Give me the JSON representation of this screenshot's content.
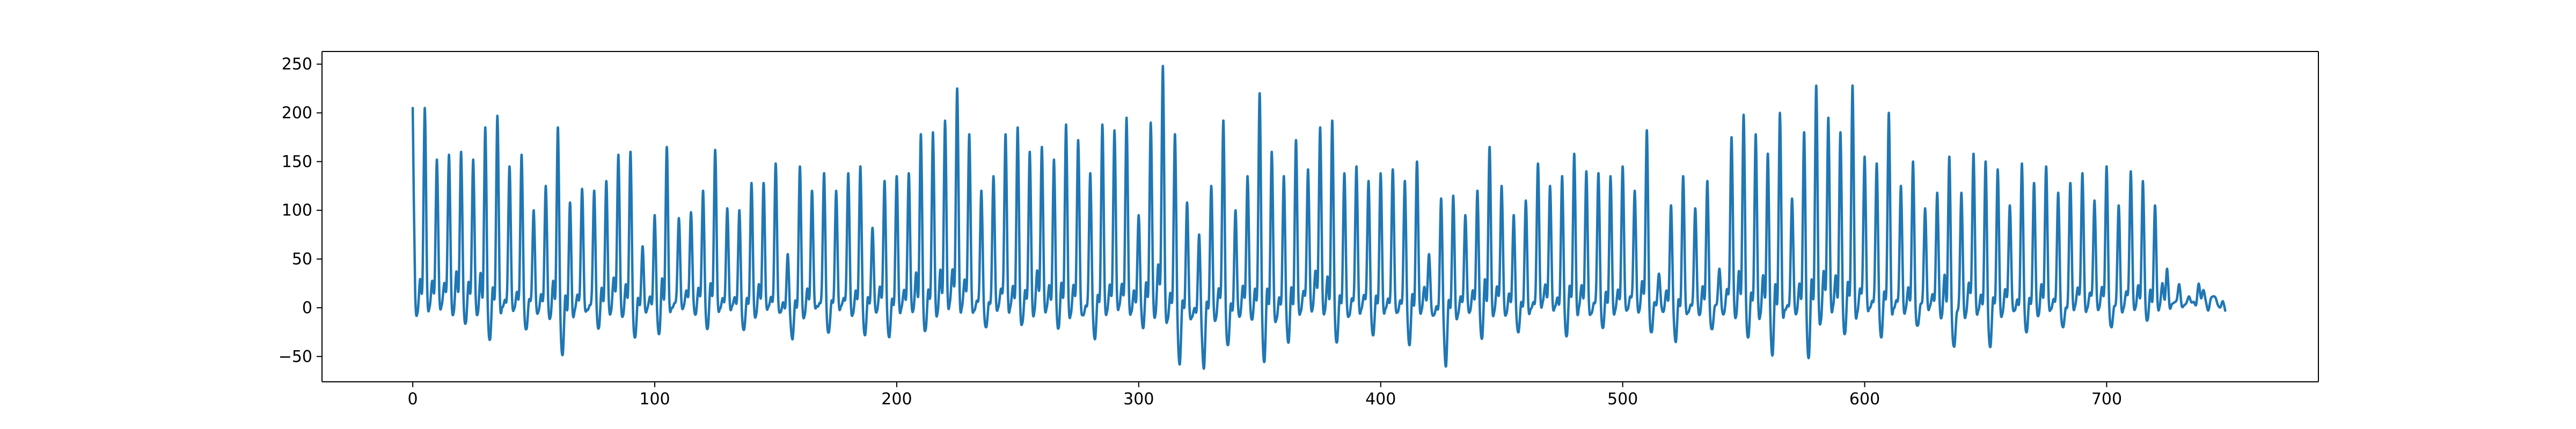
{
  "chart_data": {
    "type": "line",
    "title": "",
    "xlabel": "",
    "ylabel": "",
    "xlim": [
      -37.5,
      787.5
    ],
    "ylim": [
      -76,
      263
    ],
    "x_ticks": [
      0,
      100,
      200,
      300,
      400,
      500,
      600,
      700
    ],
    "x_tick_labels": [
      "0",
      "100",
      "200",
      "300",
      "400",
      "500",
      "600",
      "700"
    ],
    "y_ticks": [
      -50,
      0,
      50,
      100,
      150,
      200,
      250
    ],
    "y_tick_labels": [
      "−50",
      "0",
      "50",
      "100",
      "150",
      "200",
      "250"
    ],
    "grid": false,
    "legend": "none",
    "series": [
      {
        "color": "#1f77b4",
        "x_start": 0,
        "x_step": 1,
        "count": 750,
        "peaks": [
          {
            "x": 0,
            "y": 205
          },
          {
            "x": 5,
            "y": 205
          },
          {
            "x": 10,
            "y": 152
          },
          {
            "x": 15,
            "y": 157
          },
          {
            "x": 20,
            "y": 160
          },
          {
            "x": 25,
            "y": 152
          },
          {
            "x": 30,
            "y": 185
          },
          {
            "x": 35,
            "y": 197
          },
          {
            "x": 40,
            "y": 145
          },
          {
            "x": 45,
            "y": 157
          },
          {
            "x": 50,
            "y": 100
          },
          {
            "x": 55,
            "y": 125
          },
          {
            "x": 60,
            "y": 185
          },
          {
            "x": 65,
            "y": 108
          },
          {
            "x": 70,
            "y": 122
          },
          {
            "x": 75,
            "y": 120
          },
          {
            "x": 80,
            "y": 130
          },
          {
            "x": 85,
            "y": 157
          },
          {
            "x": 90,
            "y": 160
          },
          {
            "x": 95,
            "y": 63
          },
          {
            "x": 100,
            "y": 95
          },
          {
            "x": 105,
            "y": 165
          },
          {
            "x": 110,
            "y": 92
          },
          {
            "x": 115,
            "y": 98
          },
          {
            "x": 120,
            "y": 120
          },
          {
            "x": 125,
            "y": 162
          },
          {
            "x": 130,
            "y": 102
          },
          {
            "x": 135,
            "y": 100
          },
          {
            "x": 140,
            "y": 128
          },
          {
            "x": 145,
            "y": 128
          },
          {
            "x": 150,
            "y": 148
          },
          {
            "x": 155,
            "y": 55
          },
          {
            "x": 160,
            "y": 145
          },
          {
            "x": 165,
            "y": 120
          },
          {
            "x": 170,
            "y": 138
          },
          {
            "x": 175,
            "y": 120
          },
          {
            "x": 180,
            "y": 138
          },
          {
            "x": 185,
            "y": 145
          },
          {
            "x": 190,
            "y": 82
          },
          {
            "x": 195,
            "y": 130
          },
          {
            "x": 200,
            "y": 135
          },
          {
            "x": 205,
            "y": 138
          },
          {
            "x": 210,
            "y": 178
          },
          {
            "x": 215,
            "y": 180
          },
          {
            "x": 220,
            "y": 192
          },
          {
            "x": 225,
            "y": 225
          },
          {
            "x": 230,
            "y": 178
          },
          {
            "x": 235,
            "y": 120
          },
          {
            "x": 240,
            "y": 135
          },
          {
            "x": 245,
            "y": 178
          },
          {
            "x": 250,
            "y": 185
          },
          {
            "x": 255,
            "y": 160
          },
          {
            "x": 260,
            "y": 165
          },
          {
            "x": 265,
            "y": 152
          },
          {
            "x": 270,
            "y": 188
          },
          {
            "x": 275,
            "y": 172
          },
          {
            "x": 280,
            "y": 138
          },
          {
            "x": 285,
            "y": 188
          },
          {
            "x": 290,
            "y": 182
          },
          {
            "x": 295,
            "y": 195
          },
          {
            "x": 300,
            "y": 95
          },
          {
            "x": 305,
            "y": 190
          },
          {
            "x": 310,
            "y": 248
          },
          {
            "x": 315,
            "y": 178
          },
          {
            "x": 320,
            "y": 108
          },
          {
            "x": 325,
            "y": 75
          },
          {
            "x": 330,
            "y": 125
          },
          {
            "x": 335,
            "y": 192
          },
          {
            "x": 340,
            "y": 100
          },
          {
            "x": 345,
            "y": 135
          },
          {
            "x": 350,
            "y": 220
          },
          {
            "x": 355,
            "y": 160
          },
          {
            "x": 360,
            "y": 135
          },
          {
            "x": 365,
            "y": 172
          },
          {
            "x": 370,
            "y": 142
          },
          {
            "x": 375,
            "y": 185
          },
          {
            "x": 380,
            "y": 192
          },
          {
            "x": 385,
            "y": 138
          },
          {
            "x": 390,
            "y": 145
          },
          {
            "x": 395,
            "y": 130
          },
          {
            "x": 400,
            "y": 138
          },
          {
            "x": 405,
            "y": 142
          },
          {
            "x": 410,
            "y": 130
          },
          {
            "x": 415,
            "y": 150
          },
          {
            "x": 420,
            "y": 55
          },
          {
            "x": 425,
            "y": 112
          },
          {
            "x": 430,
            "y": 115
          },
          {
            "x": 435,
            "y": 95
          },
          {
            "x": 440,
            "y": 120
          },
          {
            "x": 445,
            "y": 165
          },
          {
            "x": 450,
            "y": 125
          },
          {
            "x": 455,
            "y": 95
          },
          {
            "x": 460,
            "y": 110
          },
          {
            "x": 465,
            "y": 148
          },
          {
            "x": 470,
            "y": 125
          },
          {
            "x": 475,
            "y": 135
          },
          {
            "x": 480,
            "y": 158
          },
          {
            "x": 485,
            "y": 140
          },
          {
            "x": 490,
            "y": 138
          },
          {
            "x": 495,
            "y": 135
          },
          {
            "x": 500,
            "y": 145
          },
          {
            "x": 505,
            "y": 120
          },
          {
            "x": 510,
            "y": 182
          },
          {
            "x": 515,
            "y": 35
          },
          {
            "x": 520,
            "y": 105
          },
          {
            "x": 525,
            "y": 135
          },
          {
            "x": 530,
            "y": 102
          },
          {
            "x": 535,
            "y": 130
          },
          {
            "x": 540,
            "y": 40
          },
          {
            "x": 545,
            "y": 175
          },
          {
            "x": 550,
            "y": 198
          },
          {
            "x": 555,
            "y": 178
          },
          {
            "x": 560,
            "y": 158
          },
          {
            "x": 565,
            "y": 200
          },
          {
            "x": 570,
            "y": 112
          },
          {
            "x": 575,
            "y": 180
          },
          {
            "x": 580,
            "y": 228
          },
          {
            "x": 585,
            "y": 195
          },
          {
            "x": 590,
            "y": 180
          },
          {
            "x": 595,
            "y": 228
          },
          {
            "x": 600,
            "y": 155
          },
          {
            "x": 605,
            "y": 148
          },
          {
            "x": 610,
            "y": 200
          },
          {
            "x": 615,
            "y": 125
          },
          {
            "x": 620,
            "y": 150
          },
          {
            "x": 625,
            "y": 102
          },
          {
            "x": 630,
            "y": 118
          },
          {
            "x": 635,
            "y": 155
          },
          {
            "x": 640,
            "y": 118
          },
          {
            "x": 645,
            "y": 158
          },
          {
            "x": 650,
            "y": 150
          },
          {
            "x": 655,
            "y": 142
          },
          {
            "x": 660,
            "y": 105
          },
          {
            "x": 665,
            "y": 148
          },
          {
            "x": 670,
            "y": 128
          },
          {
            "x": 675,
            "y": 145
          },
          {
            "x": 680,
            "y": 118
          },
          {
            "x": 685,
            "y": 128
          },
          {
            "x": 690,
            "y": 138
          },
          {
            "x": 695,
            "y": 110
          },
          {
            "x": 700,
            "y": 145
          },
          {
            "x": 705,
            "y": 105
          },
          {
            "x": 710,
            "y": 140
          },
          {
            "x": 715,
            "y": 130
          },
          {
            "x": 720,
            "y": 105
          },
          {
            "x": 725,
            "y": 40
          }
        ],
        "troughs": [
          {
            "x": 2,
            "y": -5
          },
          {
            "x": 22,
            "y": -15
          },
          {
            "x": 32,
            "y": -32
          },
          {
            "x": 47,
            "y": -22
          },
          {
            "x": 62,
            "y": -48
          },
          {
            "x": 77,
            "y": -20
          },
          {
            "x": 92,
            "y": -30
          },
          {
            "x": 102,
            "y": -25
          },
          {
            "x": 122,
            "y": -20
          },
          {
            "x": 137,
            "y": -22
          },
          {
            "x": 157,
            "y": -32
          },
          {
            "x": 172,
            "y": -25
          },
          {
            "x": 187,
            "y": -28
          },
          {
            "x": 197,
            "y": -30
          },
          {
            "x": 212,
            "y": -22
          },
          {
            "x": 237,
            "y": -20
          },
          {
            "x": 252,
            "y": -15
          },
          {
            "x": 267,
            "y": -20
          },
          {
            "x": 282,
            "y": -32
          },
          {
            "x": 302,
            "y": -20
          },
          {
            "x": 317,
            "y": -58
          },
          {
            "x": 327,
            "y": -62
          },
          {
            "x": 337,
            "y": -38
          },
          {
            "x": 352,
            "y": -55
          },
          {
            "x": 362,
            "y": -35
          },
          {
            "x": 382,
            "y": -35
          },
          {
            "x": 397,
            "y": -28
          },
          {
            "x": 412,
            "y": -38
          },
          {
            "x": 427,
            "y": -60
          },
          {
            "x": 442,
            "y": -30
          },
          {
            "x": 457,
            "y": -25
          },
          {
            "x": 477,
            "y": -28
          },
          {
            "x": 492,
            "y": -20
          },
          {
            "x": 512,
            "y": -25
          },
          {
            "x": 522,
            "y": -35
          },
          {
            "x": 537,
            "y": -22
          },
          {
            "x": 552,
            "y": -30
          },
          {
            "x": 562,
            "y": -48
          },
          {
            "x": 577,
            "y": -50
          },
          {
            "x": 592,
            "y": -25
          },
          {
            "x": 607,
            "y": -30
          },
          {
            "x": 622,
            "y": -18
          },
          {
            "x": 637,
            "y": -40
          },
          {
            "x": 652,
            "y": -40
          },
          {
            "x": 667,
            "y": -25
          },
          {
            "x": 682,
            "y": -20
          },
          {
            "x": 702,
            "y": -20
          },
          {
            "x": 717,
            "y": -12
          },
          {
            "x": 749,
            "y": -3
          }
        ]
      }
    ]
  }
}
